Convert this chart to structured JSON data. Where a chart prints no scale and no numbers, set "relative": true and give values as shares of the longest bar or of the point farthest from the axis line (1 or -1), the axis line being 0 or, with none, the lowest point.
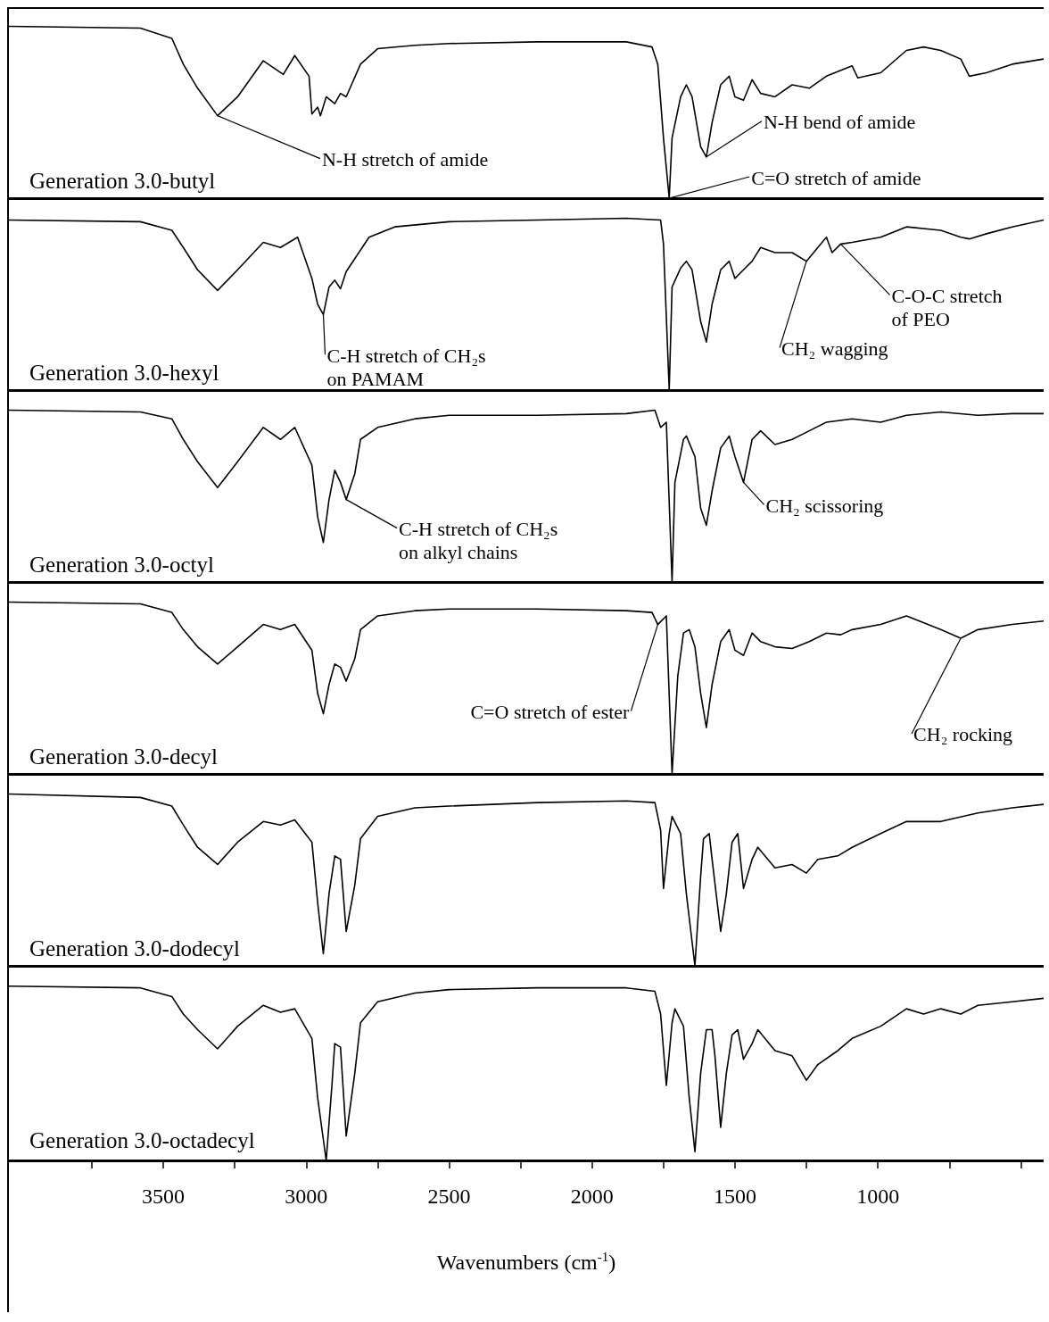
{
  "chart_data": [
    {
      "type": "line",
      "title": "Generation 3.0-butyl",
      "relative": true,
      "grid": false,
      "marker": "none",
      "line_style": "solid",
      "tick_labels": false,
      "xlim": [
        4040,
        420
      ],
      "x": [
        4040,
        3580,
        3470,
        3430,
        3380,
        3310,
        3240,
        3150,
        3080,
        3040,
        2990,
        2980,
        2960,
        2950,
        2930,
        2900,
        2880,
        2860,
        2810,
        2750,
        2620,
        2500,
        2190,
        1880,
        1790,
        1770,
        1750,
        1730,
        1720,
        1690,
        1670,
        1650,
        1620,
        1600,
        1580,
        1550,
        1520,
        1500,
        1470,
        1440,
        1410,
        1360,
        1300,
        1240,
        1180,
        1090,
        1070,
        990,
        900,
        840,
        780,
        710,
        680,
        620,
        530,
        420
      ],
      "series": [
        {
          "color": "#000000",
          "values": [
            1,
            0.99,
            0.93,
            0.78,
            0.64,
            0.48,
            0.59,
            0.8,
            0.72,
            0.83,
            0.71,
            0.49,
            0.53,
            0.48,
            0.59,
            0.55,
            0.61,
            0.59,
            0.78,
            0.87,
            0.89,
            0.9,
            0.91,
            0.91,
            0.88,
            0.78,
            0.35,
            0,
            0.35,
            0.59,
            0.66,
            0.59,
            0.3,
            0.24,
            0.44,
            0.66,
            0.71,
            0.59,
            0.57,
            0.69,
            0.61,
            0.59,
            0.66,
            0.64,
            0.71,
            0.77,
            0.7,
            0.73,
            0.86,
            0.88,
            0.86,
            0.81,
            0.71,
            0.73,
            0.78,
            0.81
          ]
        }
      ],
      "annotations": [
        {
          "text": "N-H stretch of amide",
          "x": 3310,
          "y": 0.48
        },
        {
          "text": "N-H bend of amide",
          "x": 1600,
          "y": 0.24
        },
        {
          "text": "C=O stretch of amide",
          "x": 1730,
          "y": 0
        }
      ]
    },
    {
      "type": "line",
      "title": "Generation 3.0-hexyl",
      "relative": true,
      "grid": false,
      "marker": "none",
      "line_style": "solid",
      "tick_labels": false,
      "xlim": [
        4040,
        420
      ],
      "x": [
        4040,
        3580,
        3470,
        3430,
        3380,
        3310,
        3240,
        3150,
        3090,
        3030,
        2980,
        2960,
        2940,
        2920,
        2900,
        2880,
        2860,
        2820,
        2780,
        2690,
        2500,
        2190,
        1880,
        1760,
        1750,
        1730,
        1720,
        1690,
        1670,
        1650,
        1620,
        1600,
        1580,
        1550,
        1520,
        1500,
        1470,
        1440,
        1410,
        1360,
        1300,
        1250,
        1210,
        1180,
        1160,
        1130,
        1090,
        990,
        900,
        780,
        710,
        680,
        620,
        530,
        420
      ],
      "series": [
        {
          "color": "#000000",
          "values": [
            0.99,
            0.98,
            0.93,
            0.83,
            0.7,
            0.58,
            0.7,
            0.86,
            0.83,
            0.89,
            0.65,
            0.5,
            0.44,
            0.6,
            0.64,
            0.59,
            0.69,
            0.79,
            0.89,
            0.95,
            0.98,
            0.99,
            1.0,
            0.99,
            0.85,
            0,
            0.6,
            0.71,
            0.75,
            0.7,
            0.4,
            0.28,
            0.5,
            0.7,
            0.75,
            0.65,
            0.7,
            0.75,
            0.83,
            0.8,
            0.8,
            0.75,
            0.83,
            0.89,
            0.8,
            0.85,
            0.86,
            0.89,
            0.95,
            0.93,
            0.89,
            0.88,
            0.91,
            0.95,
            0.99
          ]
        }
      ],
      "annotations": [
        {
          "text": "C-H stretch of CH₂s\non PAMAM",
          "x": 2940,
          "y": 0.44
        },
        {
          "text": "CH₂ wagging",
          "x": 1250,
          "y": 0.75
        },
        {
          "text": "C-O-C stretch\nof PEO",
          "x": 1130,
          "y": 0.85
        }
      ]
    },
    {
      "type": "line",
      "title": "Generation 3.0-octyl",
      "relative": true,
      "grid": false,
      "marker": "none",
      "line_style": "solid",
      "tick_labels": false,
      "xlim": [
        4040,
        420
      ],
      "x": [
        4040,
        3580,
        3470,
        3430,
        3380,
        3310,
        3240,
        3150,
        3090,
        3040,
        2980,
        2960,
        2940,
        2920,
        2900,
        2880,
        2860,
        2830,
        2810,
        2750,
        2620,
        2500,
        2190,
        1880,
        1780,
        1760,
        1740,
        1720,
        1710,
        1680,
        1670,
        1640,
        1620,
        1600,
        1580,
        1550,
        1520,
        1500,
        1470,
        1440,
        1410,
        1360,
        1300,
        1240,
        1180,
        1090,
        990,
        900,
        780,
        650,
        530,
        420
      ],
      "series": [
        {
          "color": "#000000",
          "values": [
            1.0,
            0.99,
            0.95,
            0.83,
            0.7,
            0.55,
            0.7,
            0.9,
            0.83,
            0.9,
            0.68,
            0.38,
            0.23,
            0.48,
            0.65,
            0.58,
            0.48,
            0.63,
            0.83,
            0.9,
            0.95,
            0.97,
            0.97,
            0.98,
            1.0,
            0.9,
            0.93,
            0,
            0.58,
            0.83,
            0.85,
            0.73,
            0.43,
            0.33,
            0.53,
            0.78,
            0.85,
            0.73,
            0.58,
            0.83,
            0.88,
            0.8,
            0.83,
            0.88,
            0.93,
            0.95,
            0.93,
            0.97,
            0.99,
            0.97,
            0.98,
            0.98
          ]
        }
      ],
      "annotations": [
        {
          "text": "C-H stretch of CH₂s\non alkyl chains",
          "x": 2860,
          "y": 0.48
        },
        {
          "text": "CH₂ scissoring",
          "x": 1470,
          "y": 0.58
        }
      ]
    },
    {
      "type": "line",
      "title": "Generation 3.0-decyl",
      "relative": true,
      "grid": false,
      "marker": "none",
      "line_style": "solid",
      "tick_labels": false,
      "xlim": [
        4040,
        420
      ],
      "x": [
        4040,
        3580,
        3470,
        3430,
        3380,
        3310,
        3240,
        3150,
        3090,
        3040,
        2980,
        2960,
        2940,
        2920,
        2900,
        2880,
        2860,
        2830,
        2810,
        2750,
        2620,
        2500,
        2190,
        1880,
        1790,
        1770,
        1740,
        1720,
        1700,
        1680,
        1660,
        1640,
        1620,
        1600,
        1580,
        1550,
        1520,
        1500,
        1470,
        1440,
        1410,
        1360,
        1300,
        1240,
        1180,
        1130,
        1090,
        990,
        900,
        780,
        710,
        650,
        530,
        420
      ],
      "series": [
        {
          "color": "#000000",
          "values": [
            1.0,
            0.99,
            0.94,
            0.84,
            0.74,
            0.64,
            0.74,
            0.87,
            0.84,
            0.87,
            0.72,
            0.47,
            0.35,
            0.52,
            0.64,
            0.62,
            0.54,
            0.67,
            0.84,
            0.92,
            0.95,
            0.96,
            0.96,
            0.95,
            0.94,
            0.87,
            0.92,
            0,
            0.57,
            0.82,
            0.84,
            0.74,
            0.47,
            0.27,
            0.52,
            0.77,
            0.84,
            0.72,
            0.69,
            0.82,
            0.77,
            0.74,
            0.73,
            0.77,
            0.82,
            0.81,
            0.84,
            0.87,
            0.92,
            0.84,
            0.79,
            0.84,
            0.87,
            0.89
          ]
        }
      ],
      "annotations": [
        {
          "text": "C=O stretch of ester",
          "x": 1770,
          "y": 0.87
        },
        {
          "text": "CH₂ rocking",
          "x": 710,
          "y": 0.79
        }
      ]
    },
    {
      "type": "line",
      "title": "Generation 3.0-dodecyl",
      "relative": true,
      "grid": false,
      "marker": "none",
      "line_style": "solid",
      "tick_labels": false,
      "xlim": [
        4040,
        420
      ],
      "x": [
        4040,
        3580,
        3470,
        3430,
        3380,
        3310,
        3240,
        3150,
        3090,
        3040,
        2980,
        2960,
        2940,
        2920,
        2900,
        2880,
        2860,
        2830,
        2810,
        2750,
        2620,
        2500,
        2190,
        1880,
        1780,
        1760,
        1750,
        1730,
        1720,
        1690,
        1670,
        1640,
        1620,
        1610,
        1590,
        1580,
        1550,
        1530,
        1510,
        1490,
        1470,
        1440,
        1420,
        1360,
        1300,
        1250,
        1210,
        1140,
        1090,
        990,
        900,
        780,
        650,
        530,
        420
      ],
      "series": [
        {
          "color": "#000000",
          "values": [
            1.0,
            0.98,
            0.93,
            0.82,
            0.69,
            0.59,
            0.72,
            0.84,
            0.82,
            0.85,
            0.72,
            0.37,
            0.07,
            0.42,
            0.64,
            0.62,
            0.2,
            0.47,
            0.74,
            0.87,
            0.92,
            0.93,
            0.95,
            0.96,
            0.95,
            0.79,
            0.45,
            0.77,
            0.87,
            0.77,
            0.42,
            0,
            0.52,
            0.74,
            0.77,
            0.62,
            0.2,
            0.42,
            0.72,
            0.77,
            0.45,
            0.62,
            0.69,
            0.57,
            0.59,
            0.54,
            0.62,
            0.64,
            0.69,
            0.77,
            0.84,
            0.84,
            0.89,
            0.92,
            0.94
          ]
        }
      ]
    },
    {
      "type": "line",
      "title": "Generation 3.0-octadecyl",
      "relative": true,
      "grid": false,
      "marker": "none",
      "line_style": "solid",
      "tick_labels": "x",
      "xlim": [
        4040,
        420
      ],
      "xlabel": "Wavenumbers (cm$^{-1}$)",
      "xticks": [
        {
          "value": 3750,
          "label": null
        },
        3500,
        {
          "value": 3250,
          "label": null
        },
        3000,
        {
          "value": 2750,
          "label": null
        },
        2500,
        {
          "value": 2250,
          "label": null
        },
        2000,
        {
          "value": 1750,
          "label": null
        },
        1500,
        {
          "value": 1250,
          "label": null
        },
        1000,
        {
          "value": 750,
          "label": null
        },
        {
          "value": 500,
          "label": null
        }
      ],
      "x": [
        4040,
        3580,
        3470,
        3430,
        3380,
        3310,
        3240,
        3150,
        3090,
        3040,
        2980,
        2960,
        2930,
        2910,
        2900,
        2880,
        2860,
        2830,
        2810,
        2750,
        2620,
        2500,
        2190,
        1880,
        1780,
        1760,
        1740,
        1720,
        1710,
        1680,
        1660,
        1640,
        1620,
        1600,
        1580,
        1570,
        1550,
        1530,
        1510,
        1490,
        1470,
        1440,
        1420,
        1360,
        1300,
        1250,
        1210,
        1140,
        1090,
        990,
        900,
        840,
        780,
        710,
        650,
        530,
        420
      ],
      "series": [
        {
          "color": "#000000",
          "values": [
            1.0,
            0.99,
            0.94,
            0.84,
            0.75,
            0.64,
            0.77,
            0.89,
            0.85,
            0.87,
            0.7,
            0.36,
            0,
            0.43,
            0.67,
            0.65,
            0.14,
            0.5,
            0.79,
            0.91,
            0.96,
            0.98,
            0.99,
            0.99,
            0.97,
            0.84,
            0.43,
            0.79,
            0.87,
            0.77,
            0.36,
            0.05,
            0.5,
            0.75,
            0.75,
            0.6,
            0.19,
            0.5,
            0.72,
            0.75,
            0.58,
            0.67,
            0.75,
            0.63,
            0.6,
            0.46,
            0.55,
            0.63,
            0.7,
            0.77,
            0.87,
            0.84,
            0.87,
            0.84,
            0.89,
            0.91,
            0.93
          ]
        }
      ]
    }
  ]
}
